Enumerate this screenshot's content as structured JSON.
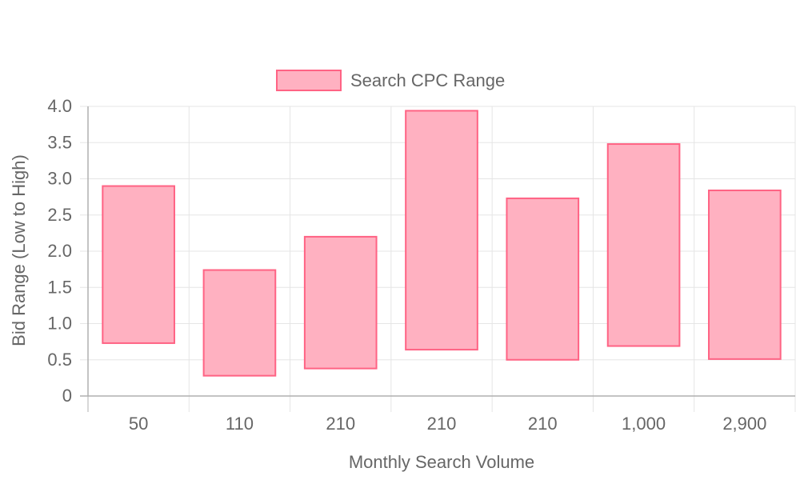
{
  "chart_data": {
    "type": "bar",
    "subtype": "floating-range",
    "categories": [
      "50",
      "110",
      "210",
      "210",
      "210",
      "1,000",
      "2,900"
    ],
    "series": [
      {
        "name": "Search CPC Range",
        "low": [
          0.73,
          0.28,
          0.38,
          0.64,
          0.5,
          0.69,
          0.51
        ],
        "high": [
          2.9,
          1.74,
          2.2,
          3.94,
          2.73,
          3.48,
          2.84
        ]
      }
    ],
    "xlabel": "Monthly Search Volume",
    "ylabel": "Bid Range (Low to High)",
    "ylim": [
      0,
      4.0
    ],
    "yticks": [
      "0",
      "0.5",
      "1.0",
      "1.5",
      "2.0",
      "2.5",
      "3.0",
      "3.5",
      "4.0"
    ],
    "grid": true,
    "legend_position": "top-center",
    "colors": {
      "bar_fill": "#ffb1c1",
      "bar_border": "#ff6384",
      "grid": "#e5e5e5",
      "axis": "#b0b0b0",
      "text": "#666666"
    }
  }
}
